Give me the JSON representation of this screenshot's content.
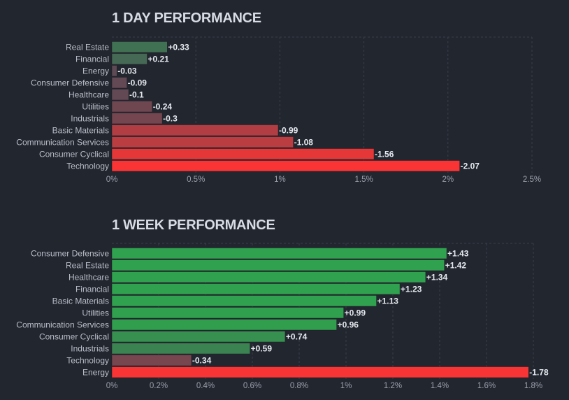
{
  "chart_data": [
    {
      "type": "bar",
      "orientation": "horizontal",
      "title": "1 DAY PERFORMANCE",
      "categories": [
        "Real Estate",
        "Financial",
        "Energy",
        "Consumer Defensive",
        "Healthcare",
        "Utilities",
        "Industrials",
        "Basic Materials",
        "Communication Services",
        "Consumer Cyclical",
        "Technology"
      ],
      "values": [
        0.33,
        0.21,
        -0.03,
        -0.09,
        -0.1,
        -0.24,
        -0.3,
        -0.99,
        -1.08,
        -1.56,
        -2.07
      ],
      "value_labels": [
        "+0.33",
        "+0.21",
        "-0.03",
        "-0.09",
        "-0.1",
        "-0.24",
        "-0.3",
        "-0.99",
        "-1.08",
        "-1.56",
        "-2.07"
      ],
      "xlim": [
        0,
        2.5
      ],
      "xticks": [
        0,
        0.5,
        1,
        1.5,
        2,
        2.5
      ],
      "xtick_labels": [
        "0%",
        "0.5%",
        "1%",
        "1.5%",
        "2%",
        "2.5%"
      ],
      "bar_magnitude": "absolute",
      "grid": true,
      "xlabel": "",
      "ylabel": ""
    },
    {
      "type": "bar",
      "orientation": "horizontal",
      "title": "1 WEEK PERFORMANCE",
      "categories": [
        "Consumer Defensive",
        "Real Estate",
        "Healthcare",
        "Financial",
        "Basic Materials",
        "Utilities",
        "Communication Services",
        "Consumer Cyclical",
        "Industrials",
        "Technology",
        "Energy"
      ],
      "values": [
        1.43,
        1.42,
        1.34,
        1.23,
        1.13,
        0.99,
        0.96,
        0.74,
        0.59,
        -0.34,
        -1.78
      ],
      "value_labels": [
        "+1.43",
        "+1.42",
        "+1.34",
        "+1.23",
        "+1.13",
        "+0.99",
        "+0.96",
        "+0.74",
        "+0.59",
        "-0.34",
        "-1.78"
      ],
      "xlim": [
        0,
        1.8
      ],
      "xticks": [
        0,
        0.2,
        0.4,
        0.6,
        0.8,
        1,
        1.2,
        1.4,
        1.6,
        1.8
      ],
      "xtick_labels": [
        "0%",
        "0.2%",
        "0.4%",
        "0.6%",
        "0.8%",
        "1%",
        "1.2%",
        "1.4%",
        "1.6%",
        "1.8%"
      ],
      "bar_magnitude": "absolute",
      "grid": true,
      "xlabel": "",
      "ylabel": ""
    }
  ]
}
